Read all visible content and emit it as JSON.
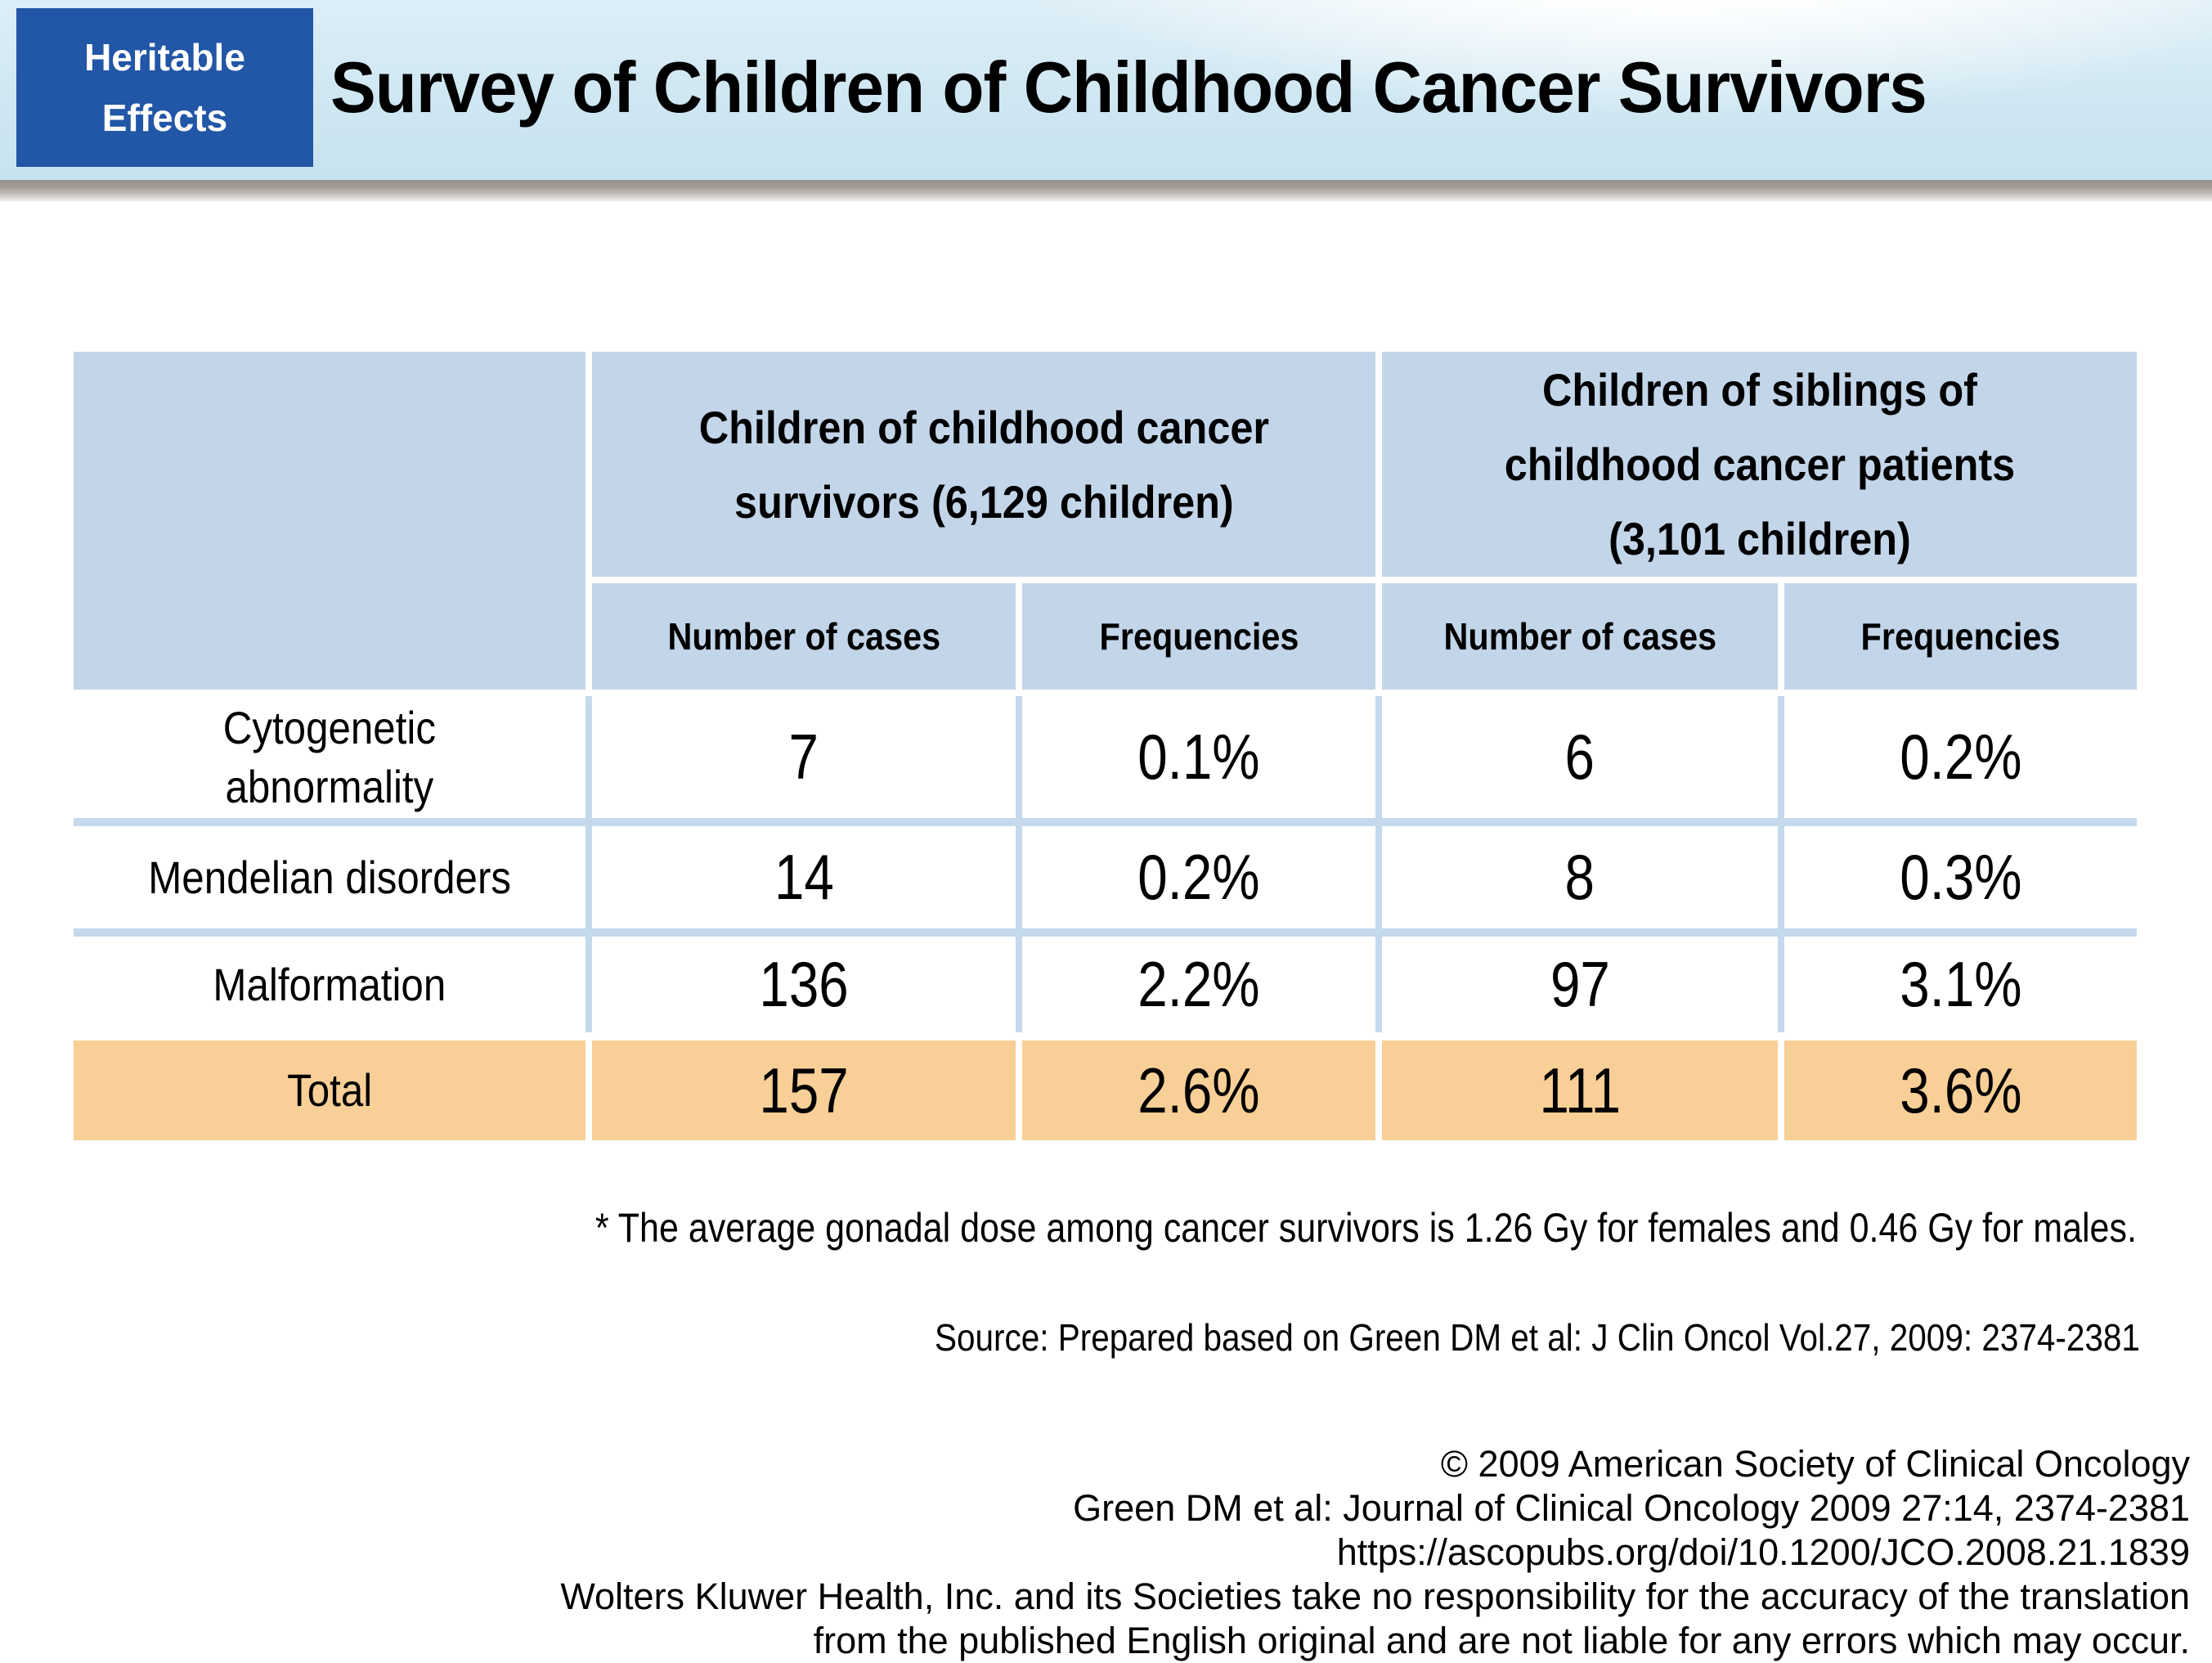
{
  "badge": {
    "lines": [
      "Heritable",
      "Effects"
    ]
  },
  "title": "Survey of Children of Childhood Cancer Survivors",
  "table": {
    "groups": [
      {
        "lines": [
          "Children of childhood cancer",
          "survivors (6,129 children)"
        ]
      },
      {
        "lines": [
          "Children of siblings of",
          "childhood cancer patients",
          "(3,101 children)"
        ]
      }
    ],
    "subheaders": [
      "Number of cases",
      "Frequencies",
      "Number of cases",
      "Frequencies"
    ],
    "rows": [
      {
        "label_lines": [
          "Cytogenetic",
          "abnormality"
        ],
        "values": [
          "7",
          "0.1%",
          "6",
          "0.2%"
        ]
      },
      {
        "label_lines": [
          "Mendelian disorders",
          ""
        ],
        "values": [
          "14",
          "0.2%",
          "8",
          "0.3%"
        ]
      },
      {
        "label_lines": [
          "Malformation",
          ""
        ],
        "values": [
          "136",
          "2.2%",
          "97",
          "3.1%"
        ]
      }
    ],
    "total": {
      "label": "Total",
      "values": [
        "157",
        "2.6%",
        "111",
        "3.6%"
      ]
    }
  },
  "footnote": "* The average gonadal dose among cancer survivors is 1.26 Gy for females and 0.46 Gy for males.",
  "source": "Source: Prepared based on Green DM et al: J Clin Oncol Vol.27, 2009: 2374-2381",
  "copyright_lines": [
    "© 2009 American Society of Clinical Oncology",
    "Green DM et al: Journal of Clinical Oncology 2009 27:14, 2374-2381",
    "https://ascopubs.org/doi/10.1200/JCO.2008.21.1839",
    "Wolters Kluwer Health, Inc. and its Societies take no responsibility for the accuracy of the translation",
    "from the published English original and are not liable for any errors which may occur."
  ],
  "colors": {
    "badge_blue": "#2256a6",
    "header_cell_blue": "#c3d5e9",
    "separator_blue": "#c5d9ec",
    "total_orange": "#f8cf97",
    "band_blue": "#c7e3ef"
  }
}
